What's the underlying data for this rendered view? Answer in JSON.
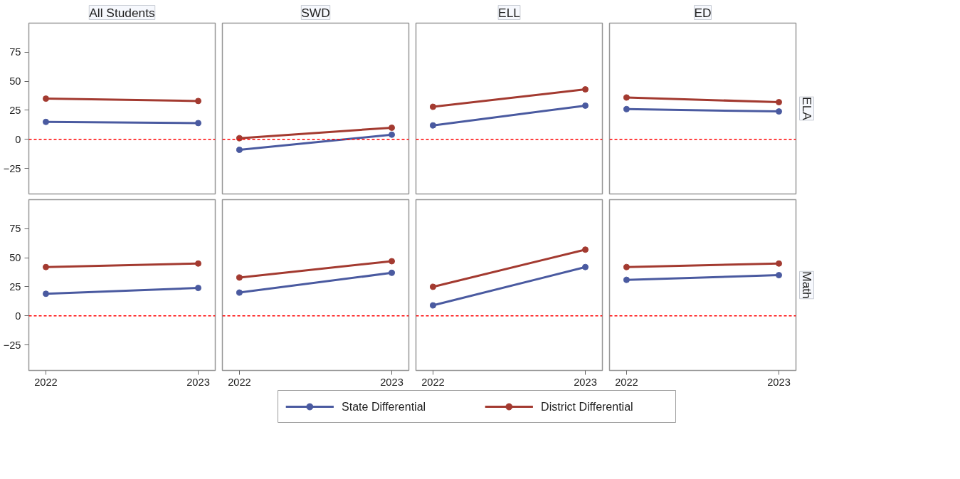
{
  "chart_data": [
    {
      "type": "line",
      "title": "All Students",
      "categories": [
        "2022",
        "2023"
      ],
      "ylim": [
        -47,
        100
      ],
      "yticks": [
        -25,
        0,
        25,
        50,
        75
      ],
      "tick_labels": "y",
      "marker": "circle",
      "legend": "bottom",
      "ref_lines": [
        {
          "axis": "y",
          "value": 0,
          "color": "#ff0000",
          "line_style": "dashed"
        }
      ],
      "series": [
        {
          "name": "State Differential",
          "color": "#4a5aa0",
          "values": [
            15,
            14
          ]
        },
        {
          "name": "District Differential",
          "color": "#a33a30",
          "values": [
            35,
            33
          ]
        }
      ]
    },
    {
      "type": "line",
      "title": "SWD",
      "categories": [
        "2022",
        "2023"
      ],
      "ylim": [
        -47,
        100
      ],
      "yticks": [
        -25,
        0,
        25,
        50,
        75
      ],
      "tick_labels": false,
      "marker": "circle",
      "ref_lines": [
        {
          "axis": "y",
          "value": 0,
          "color": "#ff0000",
          "line_style": "dashed"
        }
      ],
      "series": [
        {
          "color": "#4a5aa0",
          "values": [
            -9,
            4
          ]
        },
        {
          "color": "#a33a30",
          "values": [
            1,
            10
          ]
        }
      ]
    },
    {
      "type": "line",
      "title": "ELL",
      "categories": [
        "2022",
        "2023"
      ],
      "ylim": [
        -47,
        100
      ],
      "yticks": [
        -25,
        0,
        25,
        50,
        75
      ],
      "tick_labels": false,
      "marker": "circle",
      "ref_lines": [
        {
          "axis": "y",
          "value": 0,
          "color": "#ff0000",
          "line_style": "dashed"
        }
      ],
      "series": [
        {
          "color": "#4a5aa0",
          "values": [
            12,
            29
          ]
        },
        {
          "color": "#a33a30",
          "values": [
            28,
            43
          ]
        }
      ]
    },
    {
      "type": "line",
      "title": "ED",
      "ylabel": "ELA",
      "categories": [
        "2022",
        "2023"
      ],
      "ylim": [
        -47,
        100
      ],
      "yticks": [
        -25,
        0,
        25,
        50,
        75
      ],
      "tick_labels": false,
      "marker": "circle",
      "ref_lines": [
        {
          "axis": "y",
          "value": 0,
          "color": "#ff0000",
          "line_style": "dashed"
        }
      ],
      "series": [
        {
          "color": "#4a5aa0",
          "values": [
            26,
            24
          ]
        },
        {
          "color": "#a33a30",
          "values": [
            36,
            32
          ]
        }
      ]
    },
    {
      "type": "line",
      "categories": [
        "2022",
        "2023"
      ],
      "ylim": [
        -47,
        100
      ],
      "yticks": [
        -25,
        0,
        25,
        50,
        75
      ],
      "marker": "circle",
      "ref_lines": [
        {
          "axis": "y",
          "value": 0,
          "color": "#ff0000",
          "line_style": "dashed"
        }
      ],
      "series": [
        {
          "color": "#4a5aa0",
          "values": [
            19,
            24
          ]
        },
        {
          "color": "#a33a30",
          "values": [
            42,
            45
          ]
        }
      ]
    },
    {
      "type": "line",
      "categories": [
        "2022",
        "2023"
      ],
      "ylim": [
        -47,
        100
      ],
      "yticks": [
        -25,
        0,
        25,
        50,
        75
      ],
      "tick_labels": "x",
      "marker": "circle",
      "ref_lines": [
        {
          "axis": "y",
          "value": 0,
          "color": "#ff0000",
          "line_style": "dashed"
        }
      ],
      "series": [
        {
          "color": "#4a5aa0",
          "values": [
            20,
            37
          ]
        },
        {
          "color": "#a33a30",
          "values": [
            33,
            47
          ]
        }
      ]
    },
    {
      "type": "line",
      "categories": [
        "2022",
        "2023"
      ],
      "ylim": [
        -47,
        100
      ],
      "yticks": [
        -25,
        0,
        25,
        50,
        75
      ],
      "tick_labels": "x",
      "marker": "circle",
      "ref_lines": [
        {
          "axis": "y",
          "value": 0,
          "color": "#ff0000",
          "line_style": "dashed"
        }
      ],
      "series": [
        {
          "color": "#4a5aa0",
          "values": [
            9,
            42
          ]
        },
        {
          "color": "#a33a30",
          "values": [
            25,
            57
          ]
        }
      ]
    },
    {
      "type": "line",
      "ylabel": "Math",
      "categories": [
        "2022",
        "2023"
      ],
      "ylim": [
        -47,
        100
      ],
      "yticks": [
        -25,
        0,
        25,
        50,
        75
      ],
      "tick_labels": "x",
      "marker": "circle",
      "ref_lines": [
        {
          "axis": "y",
          "value": 0,
          "color": "#ff0000",
          "line_style": "dashed"
        }
      ],
      "series": [
        {
          "color": "#4a5aa0",
          "values": [
            31,
            35
          ]
        },
        {
          "color": "#a33a30",
          "values": [
            42,
            45
          ]
        }
      ]
    }
  ]
}
